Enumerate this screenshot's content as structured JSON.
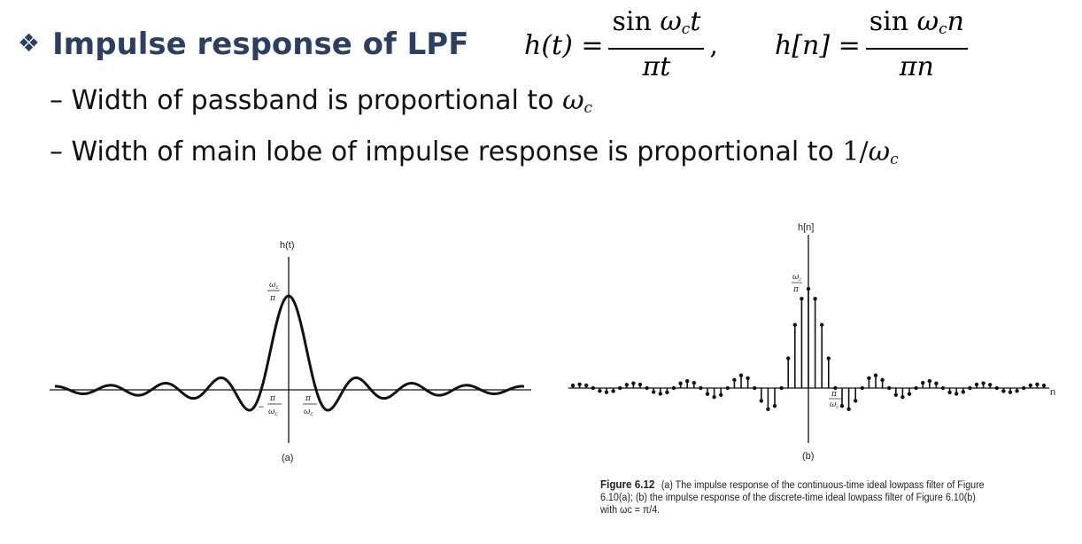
{
  "heading": {
    "bullet_glyph": "❖",
    "title": "Impulse response of LPF"
  },
  "equations": {
    "continuous": {
      "lhs": "h(t) =",
      "num_fn": "sin",
      "num_var": "ω",
      "num_sub": "c",
      "num_arg": "t",
      "den": "πt",
      "trail": ","
    },
    "discrete": {
      "lhs": "h[n] =",
      "num_fn": "sin",
      "num_var": "ω",
      "num_sub": "c",
      "num_arg": "n",
      "den": "πn"
    }
  },
  "bullets": [
    {
      "text": "– Width of passband is proportional to ",
      "math_var": "ω",
      "math_sub": "c"
    },
    {
      "text": "– Width of main lobe of impulse response is proportional to ",
      "math_prefix": "1/",
      "math_var": "ω",
      "math_sub": "c"
    }
  ],
  "figure_a": {
    "y_label": "h(t)",
    "peak_num": "ω",
    "peak_num_sub": "c",
    "peak_den": "π",
    "neg_tick_sign": "−",
    "tick_num": "π",
    "tick_den_var": "ω",
    "tick_den_sub": "c",
    "sublabel": "(a)"
  },
  "figure_b": {
    "y_label": "h[n]",
    "peak_num": "ω",
    "peak_num_sub": "c",
    "peak_den": "π",
    "tick_num": "π",
    "tick_den_var": "ω",
    "tick_den_sub": "c",
    "x_label": "n",
    "sublabel": "(b)",
    "wc_over_pi": 4
  },
  "caption": {
    "figure_number": "Figure 6.12",
    "text": "(a) The impulse response of the continuous-time ideal lowpass filter of Figure 6.10(a); (b) the impulse response of the discrete-time ideal lowpass filter of Figure 6.10(b) with ωc = π/4."
  },
  "colors": {
    "heading": "#2d3e63",
    "ink": "#111111"
  }
}
